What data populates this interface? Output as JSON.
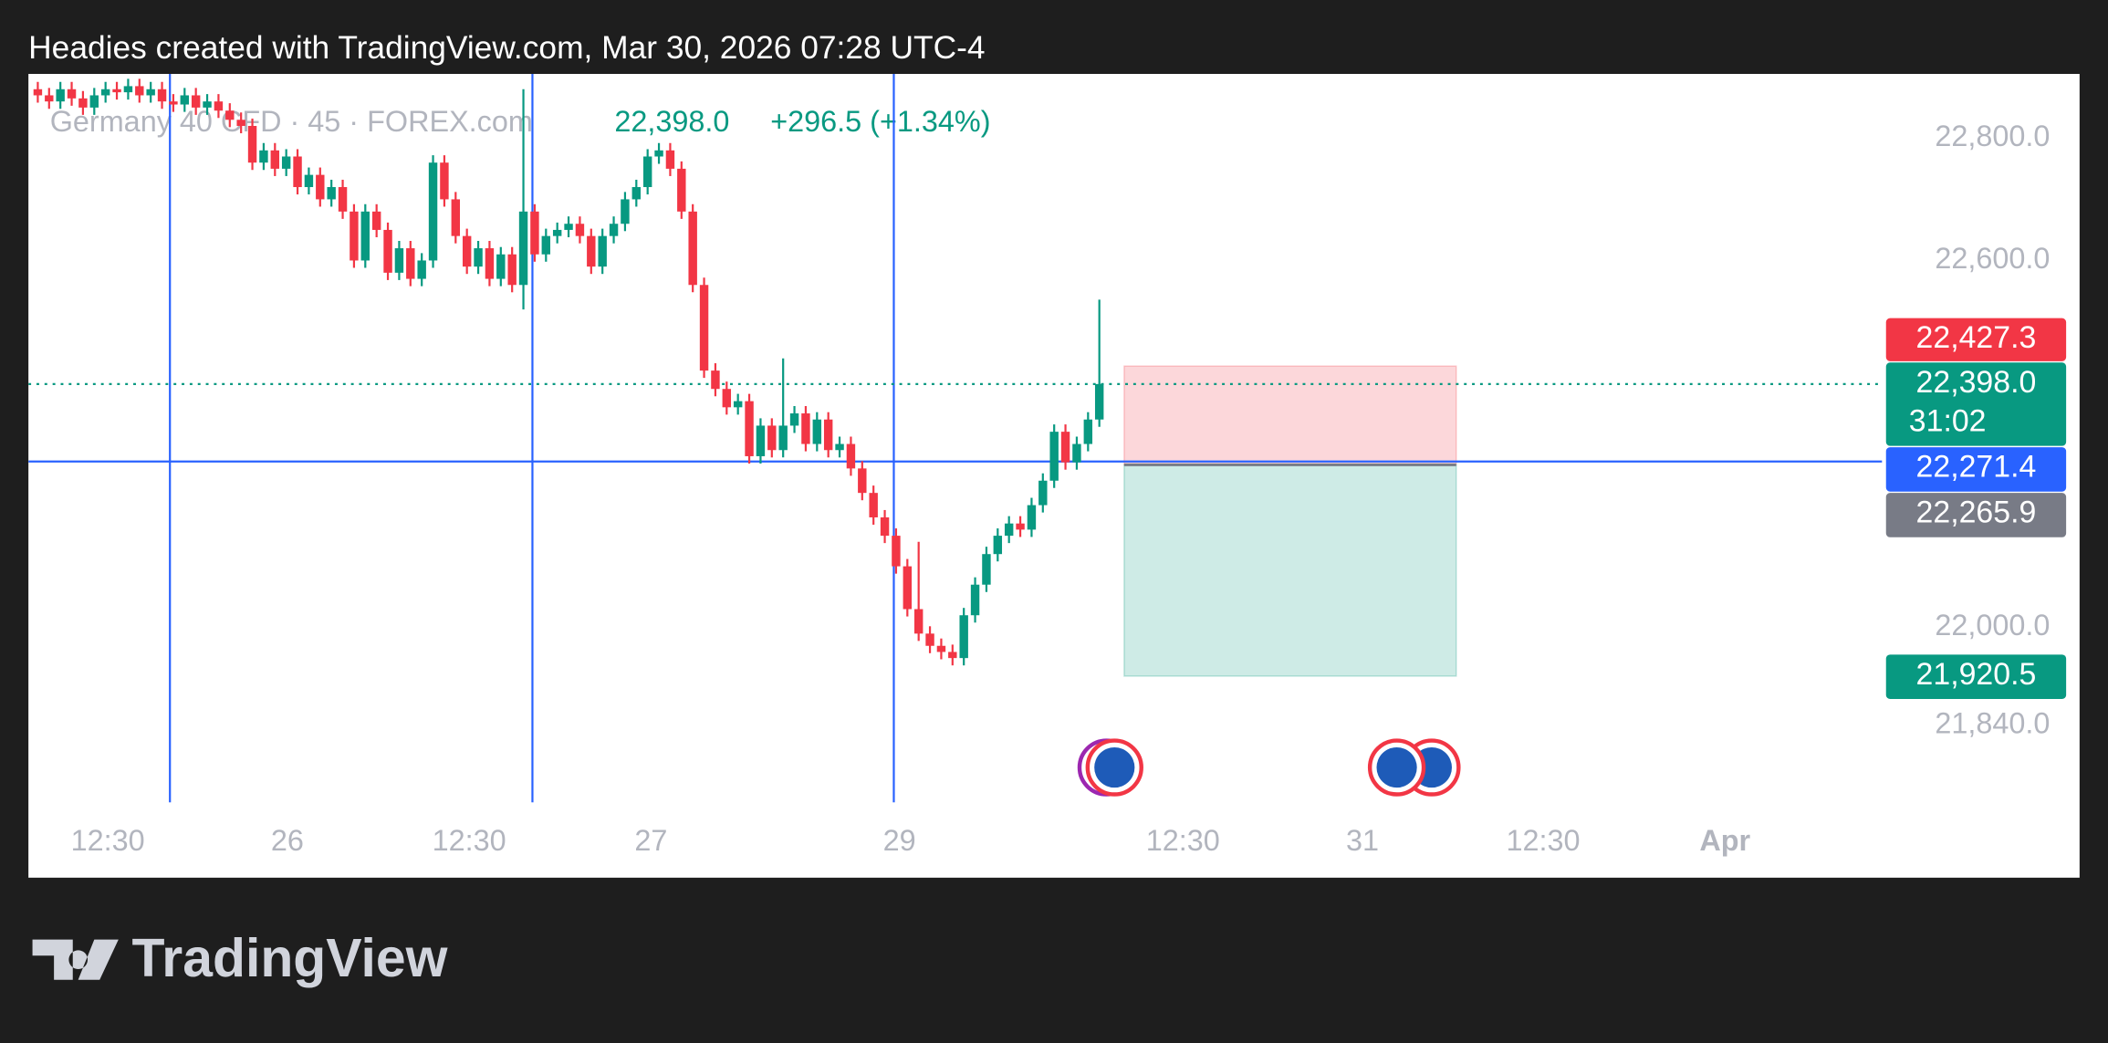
{
  "header": "Headies created with TradingView.com, Mar 30, 2026 07:28 UTC-4",
  "chart_data": {
    "type": "candlestick",
    "symbol": "Germany 40 CFD · 45 · FOREX.com",
    "last": {
      "value": 22398.0,
      "label": "22,398.0"
    },
    "change": "+296.5 (+1.34%)",
    "timer": "31:02",
    "open": [
      22880,
      22870,
      22860,
      22880,
      22865,
      22850,
      22870,
      22880,
      22875,
      22885,
      22870,
      22880,
      22860,
      22855,
      22870,
      22850,
      22860,
      22845,
      22830,
      22820,
      22760,
      22780,
      22750,
      22770,
      22720,
      22740,
      22700,
      22720,
      22680,
      22600,
      22680,
      22650,
      22580,
      22620,
      22570,
      22600,
      22760,
      22700,
      22640,
      22590,
      22620,
      22570,
      22610,
      22560,
      22680,
      22610,
      22640,
      22650,
      22660,
      22640,
      22590,
      22640,
      22660,
      22700,
      22720,
      22770,
      22780,
      22750,
      22680,
      22560,
      22420,
      22390,
      22360,
      22370,
      22280,
      22330,
      22290,
      22330,
      22350,
      22300,
      22340,
      22290,
      22300,
      22260,
      22220,
      22180,
      22150,
      22100,
      22030,
      21990,
      21970,
      21960,
      21950,
      22020,
      22070,
      22120,
      22150,
      22170,
      22160,
      22200,
      22240,
      22320,
      22270,
      22300,
      22340
    ],
    "high": [
      22892,
      22882,
      22892,
      22892,
      22877,
      22882,
      22892,
      22892,
      22897,
      22897,
      22892,
      22892,
      22872,
      22882,
      22882,
      22872,
      22872,
      22857,
      22842,
      22832,
      22792,
      22792,
      22782,
      22782,
      22752,
      22752,
      22732,
      22732,
      22692,
      22692,
      22692,
      22662,
      22632,
      22632,
      22612,
      22772,
      22772,
      22712,
      22652,
      22632,
      22632,
      22622,
      22622,
      22880,
      22692,
      22652,
      22662,
      22672,
      22672,
      22652,
      22652,
      22672,
      22712,
      22732,
      22782,
      22792,
      22792,
      22762,
      22692,
      22572,
      22432,
      22402,
      22382,
      22382,
      22342,
      22342,
      22440,
      22362,
      22362,
      22352,
      22352,
      22312,
      22312,
      22272,
      22232,
      22192,
      22162,
      22112,
      22140,
      22002,
      21982,
      21972,
      22032,
      22082,
      22132,
      22162,
      22182,
      22182,
      22212,
      22252,
      22332,
      22332,
      22312,
      22352,
      22536
    ],
    "low": [
      22858,
      22848,
      22848,
      22853,
      22838,
      22838,
      22858,
      22863,
      22863,
      22858,
      22858,
      22848,
      22843,
      22843,
      22838,
      22838,
      22833,
      22818,
      22808,
      22748,
      22748,
      22738,
      22738,
      22708,
      22708,
      22688,
      22688,
      22668,
      22588,
      22588,
      22638,
      22568,
      22568,
      22558,
      22558,
      22588,
      22688,
      22628,
      22578,
      22578,
      22558,
      22558,
      22548,
      22520,
      22598,
      22598,
      22628,
      22638,
      22628,
      22578,
      22578,
      22628,
      22648,
      22688,
      22708,
      22758,
      22738,
      22668,
      22548,
      22408,
      22378,
      22348,
      22348,
      22268,
      22268,
      22278,
      22278,
      22318,
      22288,
      22288,
      22278,
      22278,
      22248,
      22208,
      22168,
      22138,
      22088,
      22018,
      21978,
      21958,
      21948,
      21938,
      21938,
      22008,
      22058,
      22108,
      22138,
      22148,
      22148,
      22188,
      22228,
      22258,
      22258,
      22288,
      22328
    ],
    "close": [
      22870,
      22860,
      22880,
      22865,
      22850,
      22870,
      22880,
      22875,
      22885,
      22870,
      22880,
      22860,
      22855,
      22870,
      22850,
      22860,
      22845,
      22830,
      22820,
      22760,
      22780,
      22750,
      22770,
      22720,
      22740,
      22700,
      22720,
      22680,
      22600,
      22680,
      22650,
      22580,
      22620,
      22570,
      22600,
      22760,
      22700,
      22640,
      22590,
      22620,
      22570,
      22610,
      22560,
      22680,
      22610,
      22640,
      22650,
      22660,
      22640,
      22590,
      22640,
      22660,
      22700,
      22720,
      22770,
      22780,
      22750,
      22680,
      22560,
      22420,
      22390,
      22360,
      22370,
      22280,
      22330,
      22290,
      22330,
      22350,
      22300,
      22340,
      22290,
      22300,
      22260,
      22220,
      22180,
      22150,
      22100,
      22030,
      21990,
      21970,
      21960,
      21950,
      22020,
      22070,
      22120,
      22150,
      22170,
      22160,
      22200,
      22240,
      22320,
      22270,
      22300,
      22340,
      22398
    ],
    "up_color": "#089981",
    "down_color": "#f23645",
    "xlim": [
      -0.83,
      180.8
    ],
    "xticks": [
      {
        "value": 6.2,
        "label": "12:30"
      },
      {
        "value": 22.1,
        "label": "26"
      },
      {
        "value": 38.2,
        "label": "12:30"
      },
      {
        "value": 54.3,
        "label": "27"
      },
      {
        "value": 76.3,
        "label": "29"
      },
      {
        "value": 101.4,
        "label": "12:30"
      },
      {
        "value": 117.3,
        "label": "31"
      },
      {
        "value": 133.3,
        "label": "12:30"
      },
      {
        "value": 149.4,
        "label": "Apr",
        "bold": true
      }
    ],
    "ylim": [
      21714,
      22905
    ],
    "yticks": [
      {
        "value": 22800,
        "label": "22,800.0"
      },
      {
        "value": 22600,
        "label": "22,600.0"
      },
      {
        "value": 22000,
        "label": "22,000.0"
      },
      {
        "value": 21840,
        "label": "21,840.0"
      }
    ],
    "vertical_lines": [
      11.7,
      43.8,
      75.8
    ],
    "horizontal_line": {
      "value": 22271.4,
      "label": "22,271.4"
    },
    "line_color": "#2962ff",
    "position": {
      "start": 96.2,
      "end": 125.6,
      "stop": {
        "value": 22427.3,
        "label": "22,427.3"
      },
      "entry": {
        "value": 22265.9,
        "label": "22,265.9"
      },
      "target": {
        "value": 21920.5,
        "label": "21,920.5"
      }
    }
  },
  "footer": {
    "brand": "TradingView"
  }
}
